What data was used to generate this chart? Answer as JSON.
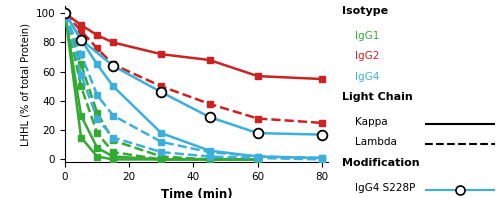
{
  "xlabel": "Time (min)",
  "ylabel": "LHHL (% of total Protein)",
  "xlim": [
    0,
    82
  ],
  "ylim": [
    -2,
    105
  ],
  "xticks": [
    0,
    20,
    40,
    60,
    80
  ],
  "yticks": [
    0,
    20,
    40,
    60,
    80,
    100
  ],
  "series": [
    {
      "name": "IgG1_kappa_1",
      "color": "#33aa33",
      "linestyle": "solid",
      "linewidth": 1.8,
      "marker": "s",
      "markersize": 4.5,
      "x": [
        0,
        5,
        10,
        15,
        30,
        45,
        60
      ],
      "y": [
        100,
        15,
        2,
        0,
        0,
        0,
        0
      ]
    },
    {
      "name": "IgG1_kappa_2",
      "color": "#33aa33",
      "linestyle": "solid",
      "linewidth": 1.8,
      "marker": "s",
      "markersize": 4.5,
      "x": [
        0,
        5,
        10,
        15,
        30,
        45,
        60
      ],
      "y": [
        100,
        30,
        8,
        2,
        0,
        0,
        0
      ]
    },
    {
      "name": "IgG1_lambda_1",
      "color": "#33aa33",
      "linestyle": "dashed",
      "linewidth": 1.8,
      "marker": "s",
      "markersize": 4.5,
      "x": [
        0,
        5,
        10,
        15,
        30,
        45,
        60
      ],
      "y": [
        100,
        50,
        18,
        5,
        0,
        0,
        0
      ]
    },
    {
      "name": "IgG1_lambda_2",
      "color": "#33aa33",
      "linestyle": "dashed",
      "linewidth": 1.8,
      "marker": "s",
      "markersize": 4.5,
      "x": [
        0,
        5,
        10,
        15,
        30,
        45,
        60
      ],
      "y": [
        100,
        65,
        32,
        13,
        2,
        0,
        0
      ]
    },
    {
      "name": "IgG2_kappa_1",
      "color": "#cc2222",
      "linestyle": "solid",
      "linewidth": 1.8,
      "marker": "s",
      "markersize": 4.5,
      "x": [
        0,
        5,
        10,
        15,
        30,
        45,
        60,
        80
      ],
      "y": [
        100,
        92,
        85,
        80,
        72,
        68,
        57,
        55
      ]
    },
    {
      "name": "IgG2_lambda_1",
      "color": "#cc2222",
      "linestyle": "dashed",
      "linewidth": 1.8,
      "marker": "s",
      "markersize": 4.5,
      "x": [
        0,
        5,
        10,
        15,
        30,
        45,
        60,
        80
      ],
      "y": [
        100,
        88,
        76,
        65,
        50,
        38,
        28,
        25
      ]
    },
    {
      "name": "IgG4_kappa_1",
      "color": "#3bb0dd",
      "linestyle": "solid",
      "linewidth": 1.8,
      "marker": "s",
      "markersize": 4.5,
      "x": [
        0,
        5,
        10,
        15,
        30,
        45,
        60,
        80
      ],
      "y": [
        100,
        82,
        65,
        50,
        18,
        6,
        2,
        1
      ]
    },
    {
      "name": "IgG4_lambda_1",
      "color": "#3bb0dd",
      "linestyle": "dashed",
      "linewidth": 1.8,
      "marker": "s",
      "markersize": 4.5,
      "x": [
        0,
        5,
        10,
        15,
        30,
        45,
        60,
        80
      ],
      "y": [
        100,
        72,
        44,
        30,
        12,
        5,
        2,
        1
      ]
    },
    {
      "name": "IgG4_lambda_2",
      "color": "#3bb0dd",
      "linestyle": "dashed",
      "linewidth": 1.8,
      "marker": "s",
      "markersize": 4.5,
      "x": [
        0,
        5,
        10,
        15,
        30,
        45,
        60,
        80
      ],
      "y": [
        100,
        58,
        28,
        15,
        5,
        2,
        1,
        0
      ]
    },
    {
      "name": "IgG4_S228P",
      "color": "#3bb0dd",
      "linestyle": "solid",
      "linewidth": 1.8,
      "marker": "o",
      "markersize": 7,
      "markerfacecolor": "white",
      "markeredgecolor": "black",
      "markeredgewidth": 1.3,
      "x": [
        0,
        5,
        15,
        30,
        45,
        60,
        80
      ],
      "y": [
        100,
        82,
        64,
        46,
        29,
        18,
        17
      ]
    }
  ],
  "legend": {
    "isotype_title": "Isotype",
    "IgG1_label": "IgG1",
    "IgG1_color": "#33aa33",
    "IgG2_label": "IgG2",
    "IgG2_color": "#cc2222",
    "IgG4_label": "IgG4",
    "IgG4_color": "#3bb0dd",
    "lightchain_title": "Light Chain",
    "kappa_label": "Kappa",
    "lambda_label": "Lambda",
    "modification_title": "Modification",
    "IgG4S228P_label": "IgG4 S228P"
  }
}
